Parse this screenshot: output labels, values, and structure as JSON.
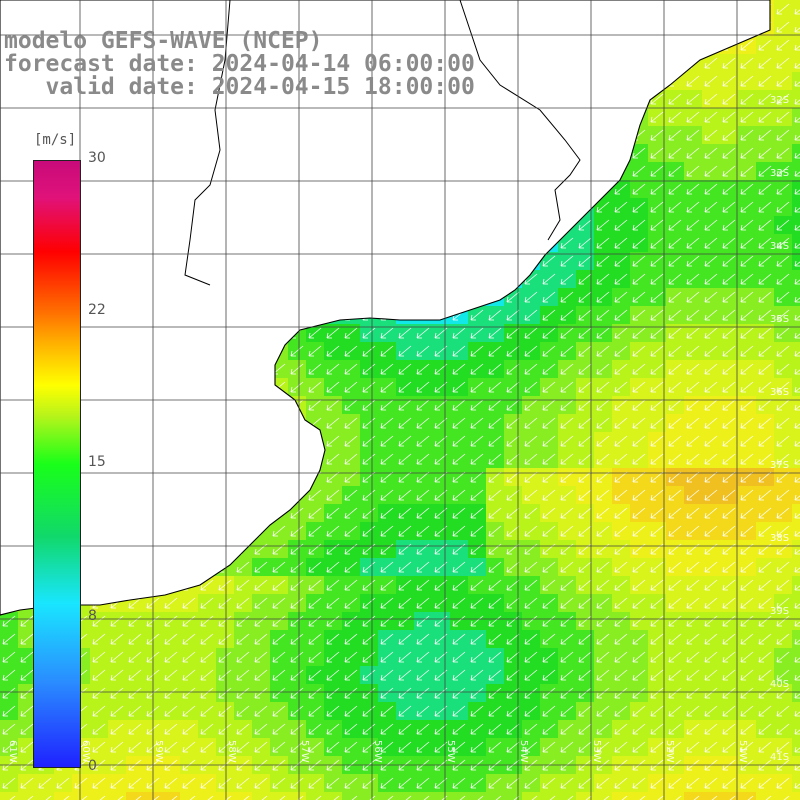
{
  "title": {
    "line1": "modelo GEFS-WAVE (NCEP)",
    "line2": "forecast date: 2024-04-14 06:00:00",
    "line3": "   valid date: 2024-04-15 18:00:00"
  },
  "legend": {
    "unit": "[m/s]",
    "ticks": [
      "30",
      "22",
      "15",
      "8",
      "0"
    ],
    "tick_values": [
      30,
      22,
      15,
      8,
      0
    ]
  },
  "axes": {
    "lon_labels": [
      "61W",
      "60W",
      "59W",
      "58W",
      "57W",
      "56W",
      "55W",
      "54W",
      "53W",
      "52W",
      "51W"
    ],
    "lat_labels": [
      "32S",
      "33S",
      "34S",
      "35S",
      "36S",
      "37S",
      "38S",
      "39S",
      "40S",
      "41S"
    ]
  },
  "colors": {
    "land": "#ffffff",
    "grid": "#444444",
    "coast": "#000000",
    "arrows": "#ffffff",
    "title": "#8a8a8a"
  }
}
